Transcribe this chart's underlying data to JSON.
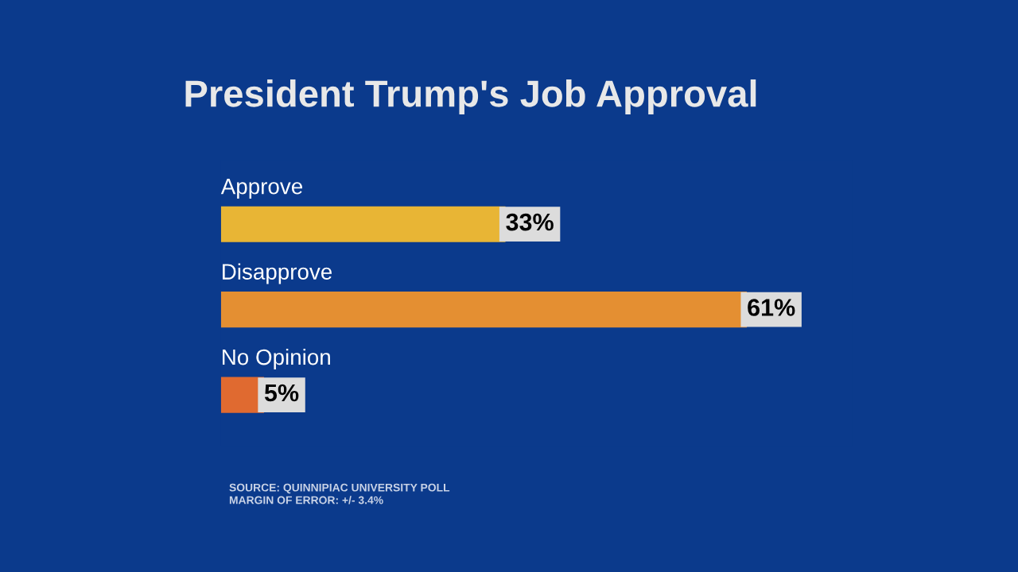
{
  "chart_data": {
    "type": "bar",
    "orientation": "horizontal",
    "title": "President Trump's Job Approval",
    "categories": [
      "Approve",
      "Disapprove",
      "No Opinion"
    ],
    "values": [
      33,
      61,
      5
    ],
    "colors": [
      "#e8b535",
      "#e48f32",
      "#e06a30"
    ],
    "value_labels": [
      "33%",
      "61%",
      "5%"
    ],
    "annotations": [
      "SOURCE: QUINNIPIAC UNIVERSITY POLL",
      "MARGIN OF ERROR: +/- 3.4%"
    ]
  }
}
